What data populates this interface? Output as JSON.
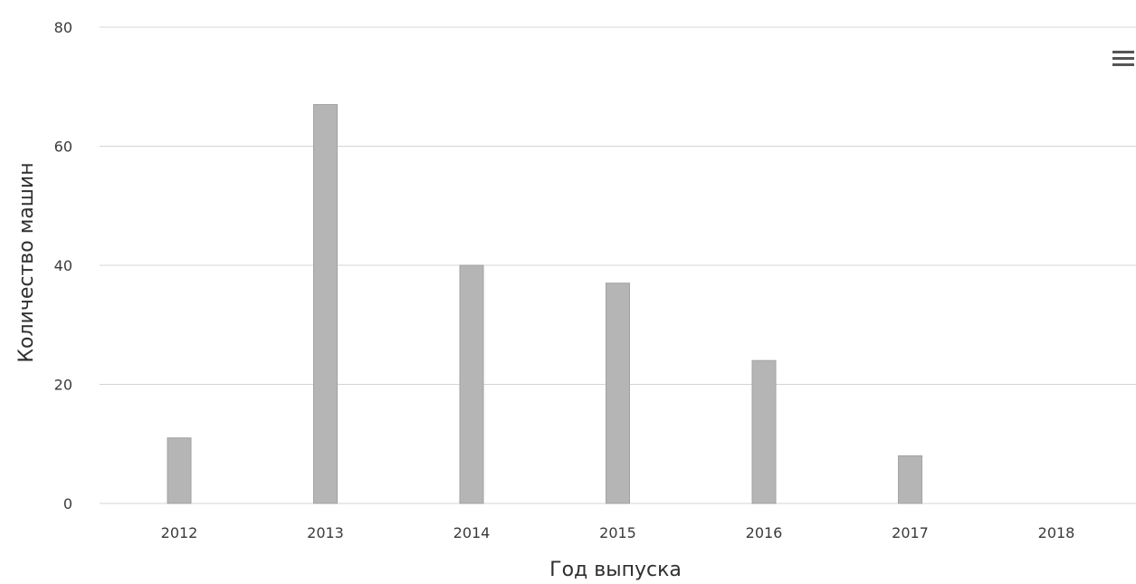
{
  "chart_data": {
    "type": "bar",
    "categories": [
      "2012",
      "2013",
      "2014",
      "2015",
      "2016",
      "2017",
      "2018"
    ],
    "values": [
      11,
      67,
      40,
      37,
      24,
      8,
      0
    ],
    "xlabel": "Год выпуска",
    "ylabel": "Количество машин",
    "ylim": [
      0,
      80
    ],
    "yticks": [
      "0",
      "20",
      "40",
      "60",
      "80"
    ],
    "grid": true,
    "bar_color": "#b5b5b5",
    "grid_color": "#d4d4d4"
  },
  "menu": {
    "icon": "hamburger-menu-icon"
  }
}
